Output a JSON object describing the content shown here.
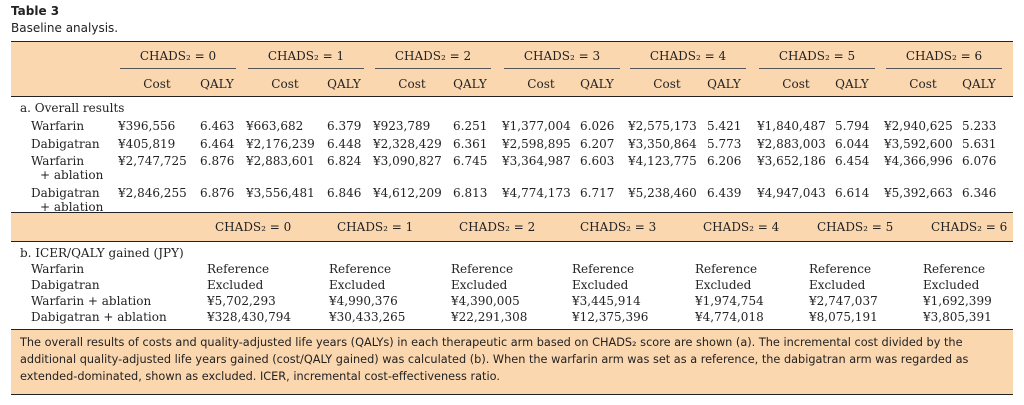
{
  "table": {
    "number": "Table 3",
    "caption": "Baseline analysis.",
    "chads_labels": [
      "CHADS₂ = 0",
      "CHADS₂ = 1",
      "CHADS₂ = 2",
      "CHADS₂ = 3",
      "CHADS₂ = 4",
      "CHADS₂ = 5",
      "CHADS₂ = 6"
    ],
    "sub_cost": "Cost",
    "sub_qaly": "QALY",
    "section_a": "a. Overall results",
    "section_b": "b. ICER/QALY gained (JPY)",
    "rows_a": [
      {
        "label": "Warfarin",
        "label2": "",
        "values": [
          "¥396,556",
          "6.463",
          "¥663,682",
          "6.379",
          "¥923,789",
          "6.251",
          "¥1,377,004",
          "6.026",
          "¥2,575,173",
          "5.421",
          "¥1,840,487",
          "5.794",
          "¥2,940,625",
          "5.233"
        ]
      },
      {
        "label": "Dabigatran",
        "label2": "",
        "values": [
          "¥405,819",
          "6.464",
          "¥2,176,239",
          "6.448",
          "¥2,328,429",
          "6.361",
          "¥2,598,895",
          "6.207",
          "¥3,350,864",
          "5.773",
          "¥2,883,003",
          "6.044",
          "¥3,592,600",
          "5.631"
        ]
      },
      {
        "label": "Warfarin",
        "label2": "+ ablation",
        "values": [
          "¥2,747,725",
          "6.876",
          "¥2,883,601",
          "6.824",
          "¥3,090,827",
          "6.745",
          "¥3,364,987",
          "6.603",
          "¥4,123,775",
          "6.206",
          "¥3,652,186",
          "6.454",
          "¥4,366,996",
          "6.076"
        ]
      },
      {
        "label": "Dabigatran",
        "label2": "+ ablation",
        "values": [
          "¥2,846,255",
          "6.876",
          "¥3,556,481",
          "6.846",
          "¥4,612,209",
          "6.813",
          "¥4,774,173",
          "6.717",
          "¥5,238,460",
          "6.439",
          "¥4,947,043",
          "6.614",
          "¥5,392,663",
          "6.346"
        ]
      }
    ],
    "rows_b": [
      {
        "label": "Warfarin",
        "values": [
          "Reference",
          "Reference",
          "Reference",
          "Reference",
          "Reference",
          "Reference",
          "Reference"
        ]
      },
      {
        "label": "Dabigatran",
        "values": [
          "Excluded",
          "Excluded",
          "Excluded",
          "Excluded",
          "Excluded",
          "Excluded",
          "Excluded"
        ]
      },
      {
        "label": "Warfarin + ablation",
        "values": [
          "¥5,702,293",
          "¥4,990,376",
          "¥4,390,005",
          "¥3,445,914",
          "¥1,974,754",
          "¥2,747,037",
          "¥1,692,399"
        ]
      },
      {
        "label": "Dabigatran + ablation",
        "values": [
          "¥328,430,794",
          "¥30,433,265",
          "¥22,291,308",
          "¥12,375,396",
          "¥4,774,018",
          "¥8,075,191",
          "¥3,805,391"
        ]
      }
    ],
    "footnote": "The overall results of costs and quality-adjusted life years (QALYs) in each therapeutic arm based on CHADS₂ score are shown (a). The incremental cost divided by the additional quality-adjusted life years gained (cost/QALY gained) was calculated (b). When the warfarin arm was set as a reference, the dabigatran arm was regarded as extended-dominated, shown as excluded. ICER, incremental cost-effectiveness ratio.",
    "band_color": "#fbd7b0"
  }
}
